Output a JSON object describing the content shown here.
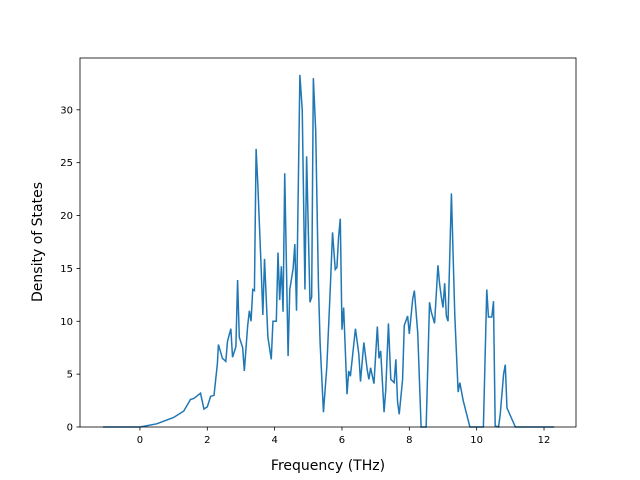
{
  "chart_data": {
    "type": "line",
    "x_label": "Frequency (THz)",
    "y_label": "Density of States",
    "x": [
      -1.1,
      0,
      0.5,
      1.0,
      1.3,
      1.5,
      1.6,
      1.8,
      1.9,
      2.0,
      2.1,
      2.2,
      2.3,
      2.33,
      2.45,
      2.55,
      2.6,
      2.7,
      2.75,
      2.85,
      2.9,
      2.95,
      3.05,
      3.1,
      3.2,
      3.25,
      3.3,
      3.35,
      3.4,
      3.45,
      3.5,
      3.6,
      3.65,
      3.7,
      3.8,
      3.9,
      3.95,
      4.05,
      4.1,
      4.15,
      4.2,
      4.25,
      4.3,
      4.4,
      4.45,
      4.55,
      4.6,
      4.65,
      4.75,
      4.82,
      4.9,
      4.95,
      5.05,
      5.1,
      5.15,
      5.22,
      5.3,
      5.35,
      5.45,
      5.55,
      5.65,
      5.72,
      5.8,
      5.85,
      5.9,
      5.95,
      6.0,
      6.05,
      6.15,
      6.2,
      6.25,
      6.4,
      6.5,
      6.55,
      6.65,
      6.75,
      6.8,
      6.85,
      6.95,
      7.05,
      7.1,
      7.15,
      7.25,
      7.3,
      7.38,
      7.45,
      7.55,
      7.6,
      7.65,
      7.7,
      7.8,
      7.85,
      7.95,
      8.0,
      8.1,
      8.15,
      8.25,
      8.35,
      8.5,
      8.6,
      8.65,
      8.75,
      8.85,
      8.9,
      8.95,
      9.0,
      9.05,
      9.1,
      9.15,
      9.25,
      9.35,
      9.45,
      9.5,
      9.6,
      9.8,
      10.2,
      10.3,
      10.35,
      10.45,
      10.5,
      10.55,
      10.65,
      10.7,
      10.8,
      10.85,
      10.9,
      11.15,
      12.3
    ],
    "values": [
      0,
      0,
      0.3,
      0.9,
      1.5,
      2.6,
      2.7,
      3.2,
      1.7,
      1.9,
      2.9,
      3.0,
      6,
      7.8,
      6.5,
      6.2,
      8.1,
      9.3,
      6.6,
      7.6,
      13.9,
      8.5,
      7.5,
      5.3,
      9.6,
      11,
      10,
      13,
      12.9,
      26.3,
      23,
      15,
      10.6,
      15.9,
      8.5,
      6.4,
      10,
      10,
      16.5,
      12,
      15.2,
      10.9,
      24,
      6.7,
      13,
      15,
      17.3,
      11,
      33.3,
      30,
      13,
      25.6,
      11.8,
      12.3,
      33,
      28,
      13.6,
      8,
      1.4,
      5.7,
      12.9,
      18.4,
      14.9,
      15.1,
      18,
      19.7,
      9.2,
      11.3,
      3.1,
      5.3,
      4.8,
      9.3,
      6.9,
      4.3,
      8,
      5.4,
      4.5,
      5.6,
      4.1,
      9.5,
      6.5,
      7.2,
      1.4,
      3.5,
      9.8,
      4.5,
      4.2,
      6.4,
      2.4,
      1.2,
      4.5,
      9.6,
      10.5,
      8.8,
      12.1,
      12.9,
      8.9,
      0,
      0,
      11.8,
      10.9,
      9.8,
      15.3,
      13.5,
      12.3,
      11.3,
      13.6,
      10.5,
      10,
      22.1,
      10.6,
      3.3,
      4.2,
      2.5,
      0,
      0,
      13,
      10.4,
      10.4,
      11.9,
      0.1,
      0,
      1.2,
      5,
      5.9,
      1.8,
      0,
      0
    ],
    "color": "#1f77b4",
    "xlim": [
      -1.78,
      12.95
    ],
    "ylim": [
      0,
      34.9
    ],
    "xticks": [
      0,
      2,
      4,
      6,
      8,
      10,
      12
    ],
    "yticks": [
      0,
      5,
      10,
      15,
      20,
      25,
      30
    ]
  }
}
